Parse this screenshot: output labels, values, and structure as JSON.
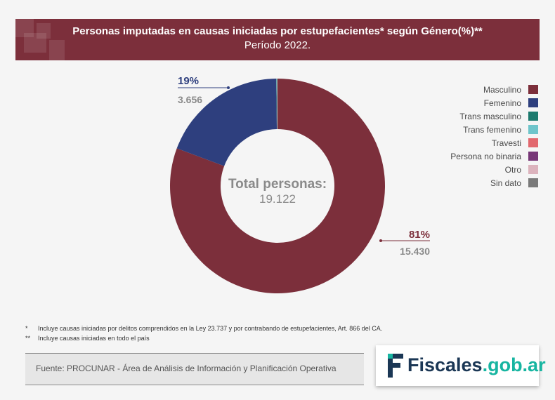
{
  "header": {
    "title": "Personas imputadas en causas iniciadas por estupefacientes* según Género(%)**",
    "subtitle": "Período 2022."
  },
  "chart_data": {
    "type": "pie",
    "style": "donut",
    "title": "Personas imputadas en causas iniciadas por estupefacientes* según Género(%)**",
    "subtitle": "Período 2022.",
    "center_label": "Total personas:",
    "center_value": "19.122",
    "slices": [
      {
        "name": "Masculino",
        "value": 15430,
        "percent_label": "81%",
        "count_label": "15.430",
        "color": "#7c2f3b"
      },
      {
        "name": "Femenino",
        "value": 3656,
        "percent_label": "19%",
        "count_label": "3.656",
        "color": "#2e3f7e"
      },
      {
        "name": "Trans masculino",
        "value": 9,
        "color": "#1c7a6e"
      },
      {
        "name": "Trans femenino",
        "value": 18,
        "color": "#6fc5cb"
      },
      {
        "name": "Travesti",
        "value": 3,
        "color": "#e2686e"
      },
      {
        "name": "Persona no binaria",
        "value": 2,
        "color": "#773777"
      },
      {
        "name": "Otro",
        "value": 1,
        "color": "#dcb3bd"
      },
      {
        "name": "Sin dato",
        "value": 3,
        "color": "#7a7a7a"
      }
    ]
  },
  "legend": {
    "items": [
      {
        "label": "Masculino",
        "color": "#7c2f3b"
      },
      {
        "label": "Femenino",
        "color": "#2e3f7e"
      },
      {
        "label": "Trans masculino",
        "color": "#1c7a6e"
      },
      {
        "label": "Trans femenino",
        "color": "#6fc5cb"
      },
      {
        "label": "Travesti",
        "color": "#e2686e"
      },
      {
        "label": "Persona no binaria",
        "color": "#773777"
      },
      {
        "label": "Otro",
        "color": "#dcb3bd"
      },
      {
        "label": "Sin dato",
        "color": "#7a7a7a"
      }
    ]
  },
  "notes": {
    "note1_mark": "*",
    "note1": "Incluye causas iniciadas por delitos comprendidos en la Ley 23.737 y por contrabando de estupefacientes, Art. 866 del CA.",
    "note2_mark": "**",
    "note2": "Incluye causas iniciadas en todo el país"
  },
  "source": {
    "text": "Fuente: PROCUNAR - Área de Análisis de Información y Planificación Operativa"
  },
  "logo": {
    "name": "Fiscales",
    "domain": ".gob.ar"
  }
}
